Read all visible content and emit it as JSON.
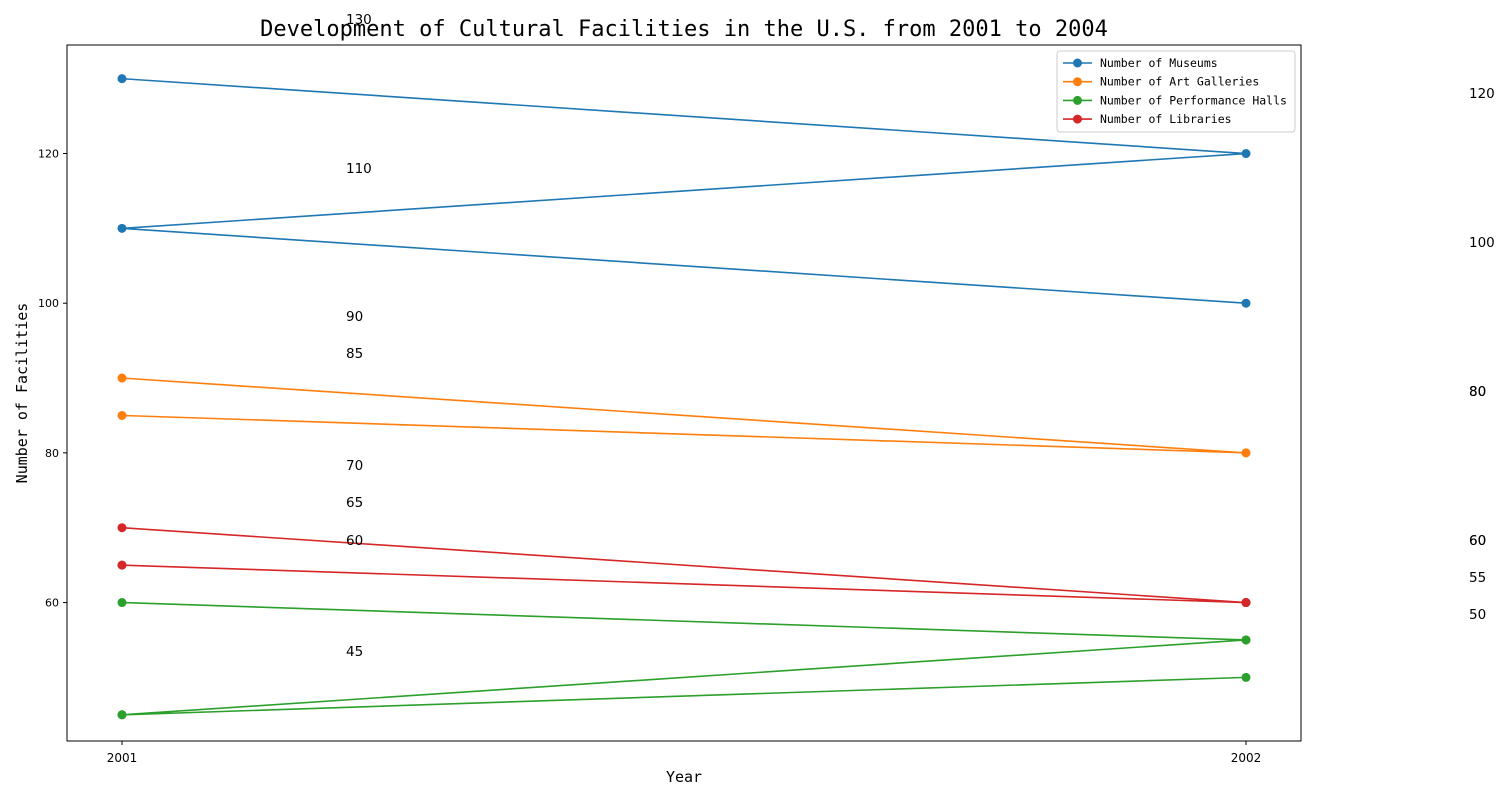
{
  "chart_data": {
    "type": "line",
    "title": "Development of Cultural Facilities in the U.S. from 2001 to 2004",
    "xlabel": "Year",
    "ylabel": "Number of Facilities",
    "x_categories": [
      "2001",
      "2002"
    ],
    "ylim": [
      41.5,
      134.5
    ],
    "yticks": [
      "60",
      "80",
      "100",
      "120"
    ],
    "grid": false,
    "legend_position": "top-right",
    "series": [
      {
        "name": "Number of Museums",
        "color": "#1f77b4",
        "points": [
          [
            "2001",
            130
          ],
          [
            "2002",
            120
          ],
          [
            "2001",
            110
          ],
          [
            "2002",
            100
          ]
        ]
      },
      {
        "name": "Number of Art Galleries",
        "color": "#ff7f0e",
        "points": [
          [
            "2001",
            90
          ],
          [
            "2002",
            80
          ],
          [
            "2001",
            85
          ],
          [
            "2002",
            80
          ]
        ]
      },
      {
        "name": "Number of Performance Halls",
        "color": "#2ca02c",
        "points": [
          [
            "2001",
            60
          ],
          [
            "2002",
            55
          ],
          [
            "2001",
            45
          ],
          [
            "2002",
            55
          ],
          [
            "2001",
            45
          ],
          [
            "2002",
            50
          ]
        ]
      },
      {
        "name": "Number of Libraries",
        "color": "#d62728",
        "points": [
          [
            "2001",
            70
          ],
          [
            "2002",
            60
          ],
          [
            "2001",
            65
          ],
          [
            "2002",
            60
          ],
          [
            "2001",
            65
          ],
          [
            "2002",
            60
          ]
        ]
      }
    ],
    "annotations_left": [
      "130",
      "110",
      "90",
      "85",
      "70",
      "65",
      "60",
      "45"
    ],
    "annotations_right": [
      "120",
      "100",
      "80",
      "80",
      "60",
      "60",
      "55",
      "50"
    ]
  }
}
